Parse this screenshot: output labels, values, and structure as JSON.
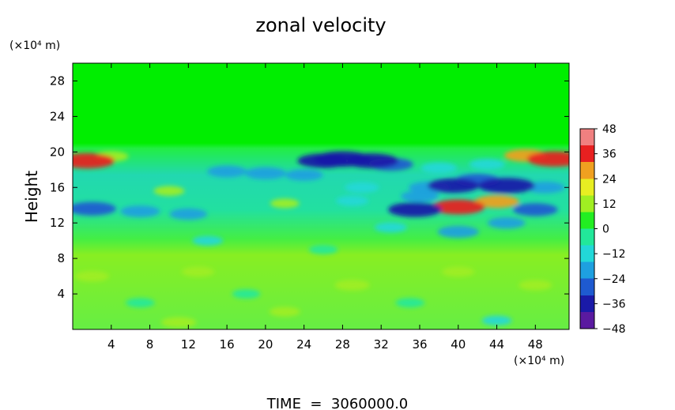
{
  "chart_data": {
    "type": "heatmap",
    "title": "zonal velocity",
    "ylabel": "Height",
    "x_unit": "(×10⁴ m)",
    "y_unit": "(×10⁴ m)",
    "xlim": [
      0,
      51.5
    ],
    "ylim": [
      0,
      30
    ],
    "x_ticks": [
      "4",
      "8",
      "12",
      "16",
      "20",
      "24",
      "28",
      "32",
      "36",
      "40",
      "44",
      "48"
    ],
    "x_tick_values": [
      4,
      8,
      12,
      16,
      20,
      24,
      28,
      32,
      36,
      40,
      44,
      48
    ],
    "y_ticks": [
      "4",
      "8",
      "12",
      "16",
      "20",
      "24",
      "28"
    ],
    "y_tick_values": [
      4,
      8,
      12,
      16,
      20,
      24,
      28
    ],
    "colorbar": {
      "min": -48,
      "max": 48,
      "labels": [
        "48",
        "36",
        "24",
        "12",
        "0",
        "−12",
        "−24",
        "−36",
        "−48"
      ],
      "values": [
        48,
        36,
        24,
        12,
        0,
        -12,
        -24,
        -36,
        -48
      ],
      "colors": [
        "#5a1aa0",
        "#1a1aa8",
        "#1e5ad0",
        "#1ea0e0",
        "#22d8d8",
        "#22e89a",
        "#22ee22",
        "#a0ee22",
        "#e8ee22",
        "#f0a020",
        "#e82020",
        "#f08080"
      ]
    },
    "footer": "TIME  =  3060000.0",
    "features": [
      {
        "x": 28,
        "y": 19.2,
        "v": -40
      },
      {
        "x": 26,
        "y": 19.0,
        "v": -34
      },
      {
        "x": 31,
        "y": 19.0,
        "v": -36
      },
      {
        "x": 33,
        "y": 18.6,
        "v": -26
      },
      {
        "x": 1.5,
        "y": 19.0,
        "v": 38
      },
      {
        "x": 50,
        "y": 19.2,
        "v": 38
      },
      {
        "x": 47,
        "y": 19.6,
        "v": 24
      },
      {
        "x": 4,
        "y": 19.5,
        "v": 14
      },
      {
        "x": 2,
        "y": 13.6,
        "v": -30
      },
      {
        "x": 7,
        "y": 13.3,
        "v": -20
      },
      {
        "x": 12,
        "y": 13.0,
        "v": -18
      },
      {
        "x": 20,
        "y": 17.6,
        "v": -22
      },
      {
        "x": 16,
        "y": 17.8,
        "v": -20
      },
      {
        "x": 24,
        "y": 17.4,
        "v": -18
      },
      {
        "x": 40,
        "y": 13.8,
        "v": 36
      },
      {
        "x": 44,
        "y": 14.4,
        "v": 26
      },
      {
        "x": 45,
        "y": 16.2,
        "v": -40
      },
      {
        "x": 39.5,
        "y": 16.2,
        "v": -34
      },
      {
        "x": 42,
        "y": 16.8,
        "v": -26
      },
      {
        "x": 35.5,
        "y": 13.5,
        "v": -36
      },
      {
        "x": 37,
        "y": 16.0,
        "v": -22
      },
      {
        "x": 48,
        "y": 13.5,
        "v": -26
      },
      {
        "x": 49,
        "y": 16.0,
        "v": -20
      },
      {
        "x": 40,
        "y": 11.0,
        "v": -22
      },
      {
        "x": 45,
        "y": 12.0,
        "v": -18
      },
      {
        "x": 33,
        "y": 11.5,
        "v": -12
      },
      {
        "x": 29,
        "y": 14.5,
        "v": -12
      },
      {
        "x": 30,
        "y": 16.0,
        "v": -14
      },
      {
        "x": 10,
        "y": 15.6,
        "v": 10
      },
      {
        "x": 22,
        "y": 14.2,
        "v": 8
      },
      {
        "x": 36,
        "y": 15.0,
        "v": -18
      },
      {
        "x": 43,
        "y": 18.6,
        "v": -16
      },
      {
        "x": 38,
        "y": 18.2,
        "v": -16
      },
      {
        "x": 2,
        "y": 6.0,
        "v": 14
      },
      {
        "x": 11,
        "y": 0.8,
        "v": 15
      },
      {
        "x": 13,
        "y": 6.5,
        "v": 12
      },
      {
        "x": 29,
        "y": 5.0,
        "v": 15
      },
      {
        "x": 40,
        "y": 6.5,
        "v": 12
      },
      {
        "x": 48,
        "y": 5.0,
        "v": 13
      },
      {
        "x": 22,
        "y": 2.0,
        "v": 10
      },
      {
        "x": 7,
        "y": 3.0,
        "v": -8
      },
      {
        "x": 18,
        "y": 4.0,
        "v": -7
      },
      {
        "x": 35,
        "y": 3.0,
        "v": -8
      },
      {
        "x": 44,
        "y": 1.0,
        "v": -9
      },
      {
        "x": 26,
        "y": 9.0,
        "v": -8
      },
      {
        "x": 14,
        "y": 10.0,
        "v": -10
      }
    ]
  }
}
